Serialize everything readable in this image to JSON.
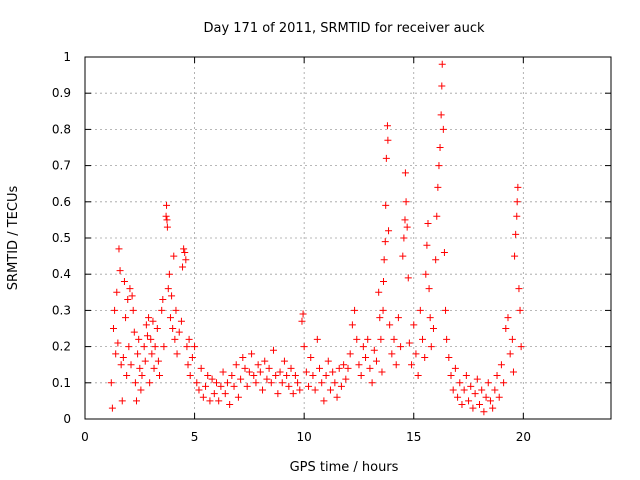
{
  "chart_data": {
    "type": "scatter",
    "title": "Day 171 of 2011, SRMTID for receiver auck",
    "xlabel": "GPS time / hours",
    "ylabel": "SRMTID / TECUs",
    "xlim": [
      0,
      24
    ],
    "ylim": [
      0,
      1
    ],
    "xticks": [
      0,
      5,
      10,
      15,
      20
    ],
    "yticks": [
      0,
      0.1,
      0.2,
      0.3,
      0.4,
      0.5,
      0.6,
      0.7,
      0.8,
      0.9,
      1
    ],
    "grid": true,
    "marker": "+",
    "color": "#ff0000",
    "series": [
      {
        "name": "SRMTID",
        "points": [
          [
            1.2,
            0.1
          ],
          [
            1.25,
            0.03
          ],
          [
            1.3,
            0.25
          ],
          [
            1.35,
            0.3
          ],
          [
            1.4,
            0.18
          ],
          [
            1.45,
            0.35
          ],
          [
            1.5,
            0.21
          ],
          [
            1.55,
            0.47
          ],
          [
            1.6,
            0.41
          ],
          [
            1.65,
            0.15
          ],
          [
            1.7,
            0.05
          ],
          [
            1.75,
            0.17
          ],
          [
            1.8,
            0.38
          ],
          [
            1.85,
            0.28
          ],
          [
            1.9,
            0.12
          ],
          [
            1.95,
            0.33
          ],
          [
            2.0,
            0.2
          ],
          [
            2.05,
            0.36
          ],
          [
            2.1,
            0.15
          ],
          [
            2.15,
            0.34
          ],
          [
            2.2,
            0.3
          ],
          [
            2.25,
            0.24
          ],
          [
            2.3,
            0.1
          ],
          [
            2.35,
            0.05
          ],
          [
            2.4,
            0.18
          ],
          [
            2.45,
            0.22
          ],
          [
            2.5,
            0.14
          ],
          [
            2.55,
            0.08
          ],
          [
            2.6,
            0.12
          ],
          [
            2.7,
            0.2
          ],
          [
            2.75,
            0.16
          ],
          [
            2.8,
            0.26
          ],
          [
            2.85,
            0.23
          ],
          [
            2.9,
            0.28
          ],
          [
            2.95,
            0.1
          ],
          [
            3.0,
            0.22
          ],
          [
            3.05,
            0.18
          ],
          [
            3.1,
            0.27
          ],
          [
            3.15,
            0.14
          ],
          [
            3.2,
            0.2
          ],
          [
            3.3,
            0.25
          ],
          [
            3.35,
            0.16
          ],
          [
            3.4,
            0.12
          ],
          [
            3.5,
            0.3
          ],
          [
            3.55,
            0.33
          ],
          [
            3.6,
            0.2
          ],
          [
            3.7,
            0.56
          ],
          [
            3.72,
            0.59
          ],
          [
            3.74,
            0.55
          ],
          [
            3.76,
            0.53
          ],
          [
            3.8,
            0.36
          ],
          [
            3.85,
            0.4
          ],
          [
            3.9,
            0.28
          ],
          [
            3.95,
            0.34
          ],
          [
            4.0,
            0.25
          ],
          [
            4.05,
            0.45
          ],
          [
            4.1,
            0.22
          ],
          [
            4.15,
            0.3
          ],
          [
            4.2,
            0.18
          ],
          [
            4.3,
            0.24
          ],
          [
            4.4,
            0.27
          ],
          [
            4.45,
            0.42
          ],
          [
            4.5,
            0.47
          ],
          [
            4.55,
            0.46
          ],
          [
            4.6,
            0.44
          ],
          [
            4.65,
            0.2
          ],
          [
            4.7,
            0.15
          ],
          [
            4.75,
            0.22
          ],
          [
            4.8,
            0.12
          ],
          [
            4.9,
            0.17
          ],
          [
            5.0,
            0.2
          ],
          [
            5.1,
            0.1
          ],
          [
            5.2,
            0.08
          ],
          [
            5.3,
            0.14
          ],
          [
            5.4,
            0.06
          ],
          [
            5.5,
            0.09
          ],
          [
            5.6,
            0.12
          ],
          [
            5.7,
            0.05
          ],
          [
            5.8,
            0.11
          ],
          [
            5.9,
            0.07
          ],
          [
            6.0,
            0.1
          ],
          [
            6.1,
            0.05
          ],
          [
            6.2,
            0.09
          ],
          [
            6.3,
            0.13
          ],
          [
            6.4,
            0.07
          ],
          [
            6.5,
            0.1
          ],
          [
            6.6,
            0.04
          ],
          [
            6.7,
            0.12
          ],
          [
            6.8,
            0.09
          ],
          [
            6.9,
            0.15
          ],
          [
            7.0,
            0.06
          ],
          [
            7.1,
            0.11
          ],
          [
            7.2,
            0.17
          ],
          [
            7.3,
            0.14
          ],
          [
            7.4,
            0.09
          ],
          [
            7.5,
            0.13
          ],
          [
            7.6,
            0.18
          ],
          [
            7.7,
            0.12
          ],
          [
            7.8,
            0.1
          ],
          [
            7.9,
            0.15
          ],
          [
            8.0,
            0.13
          ],
          [
            8.1,
            0.08
          ],
          [
            8.2,
            0.16
          ],
          [
            8.3,
            0.11
          ],
          [
            8.4,
            0.14
          ],
          [
            8.5,
            0.1
          ],
          [
            8.6,
            0.19
          ],
          [
            8.7,
            0.12
          ],
          [
            8.8,
            0.07
          ],
          [
            8.9,
            0.13
          ],
          [
            9.0,
            0.1
          ],
          [
            9.1,
            0.16
          ],
          [
            9.2,
            0.12
          ],
          [
            9.3,
            0.09
          ],
          [
            9.4,
            0.14
          ],
          [
            9.5,
            0.07
          ],
          [
            9.6,
            0.12
          ],
          [
            9.7,
            0.1
          ],
          [
            9.8,
            0.08
          ],
          [
            9.9,
            0.27
          ],
          [
            9.95,
            0.29
          ],
          [
            10.0,
            0.2
          ],
          [
            10.1,
            0.13
          ],
          [
            10.2,
            0.09
          ],
          [
            10.3,
            0.17
          ],
          [
            10.4,
            0.12
          ],
          [
            10.5,
            0.08
          ],
          [
            10.6,
            0.22
          ],
          [
            10.7,
            0.14
          ],
          [
            10.8,
            0.1
          ],
          [
            10.9,
            0.05
          ],
          [
            11.0,
            0.12
          ],
          [
            11.1,
            0.16
          ],
          [
            11.2,
            0.08
          ],
          [
            11.3,
            0.13
          ],
          [
            11.4,
            0.1
          ],
          [
            11.5,
            0.06
          ],
          [
            11.6,
            0.14
          ],
          [
            11.7,
            0.09
          ],
          [
            11.8,
            0.15
          ],
          [
            11.9,
            0.11
          ],
          [
            12.0,
            0.14
          ],
          [
            12.1,
            0.18
          ],
          [
            12.2,
            0.26
          ],
          [
            12.3,
            0.3
          ],
          [
            12.4,
            0.22
          ],
          [
            12.5,
            0.15
          ],
          [
            12.6,
            0.12
          ],
          [
            12.7,
            0.2
          ],
          [
            12.8,
            0.17
          ],
          [
            12.9,
            0.22
          ],
          [
            13.0,
            0.14
          ],
          [
            13.1,
            0.1
          ],
          [
            13.2,
            0.19
          ],
          [
            13.3,
            0.16
          ],
          [
            13.4,
            0.35
          ],
          [
            13.45,
            0.28
          ],
          [
            13.5,
            0.22
          ],
          [
            13.55,
            0.13
          ],
          [
            13.6,
            0.3
          ],
          [
            13.62,
            0.38
          ],
          [
            13.65,
            0.44
          ],
          [
            13.7,
            0.49
          ],
          [
            13.72,
            0.59
          ],
          [
            13.75,
            0.72
          ],
          [
            13.8,
            0.81
          ],
          [
            13.82,
            0.77
          ],
          [
            13.85,
            0.52
          ],
          [
            13.9,
            0.26
          ],
          [
            14.0,
            0.18
          ],
          [
            14.1,
            0.22
          ],
          [
            14.2,
            0.15
          ],
          [
            14.3,
            0.28
          ],
          [
            14.4,
            0.2
          ],
          [
            14.5,
            0.45
          ],
          [
            14.55,
            0.5
          ],
          [
            14.6,
            0.55
          ],
          [
            14.62,
            0.68
          ],
          [
            14.65,
            0.6
          ],
          [
            14.7,
            0.53
          ],
          [
            14.75,
            0.39
          ],
          [
            14.8,
            0.21
          ],
          [
            14.9,
            0.15
          ],
          [
            15.0,
            0.26
          ],
          [
            15.1,
            0.18
          ],
          [
            15.2,
            0.12
          ],
          [
            15.3,
            0.3
          ],
          [
            15.4,
            0.22
          ],
          [
            15.5,
            0.17
          ],
          [
            15.55,
            0.4
          ],
          [
            15.6,
            0.48
          ],
          [
            15.65,
            0.54
          ],
          [
            15.7,
            0.36
          ],
          [
            15.75,
            0.28
          ],
          [
            15.8,
            0.2
          ],
          [
            15.9,
            0.25
          ],
          [
            16.0,
            0.44
          ],
          [
            16.05,
            0.56
          ],
          [
            16.1,
            0.64
          ],
          [
            16.15,
            0.7
          ],
          [
            16.2,
            0.75
          ],
          [
            16.25,
            0.84
          ],
          [
            16.28,
            0.92
          ],
          [
            16.3,
            0.98
          ],
          [
            16.35,
            0.8
          ],
          [
            16.4,
            0.46
          ],
          [
            16.45,
            0.3
          ],
          [
            16.5,
            0.22
          ],
          [
            16.6,
            0.17
          ],
          [
            16.7,
            0.12
          ],
          [
            16.8,
            0.08
          ],
          [
            16.9,
            0.14
          ],
          [
            17.0,
            0.06
          ],
          [
            17.1,
            0.1
          ],
          [
            17.2,
            0.04
          ],
          [
            17.3,
            0.08
          ],
          [
            17.4,
            0.12
          ],
          [
            17.5,
            0.05
          ],
          [
            17.6,
            0.09
          ],
          [
            17.7,
            0.03
          ],
          [
            17.8,
            0.07
          ],
          [
            17.9,
            0.11
          ],
          [
            18.0,
            0.04
          ],
          [
            18.1,
            0.08
          ],
          [
            18.2,
            0.02
          ],
          [
            18.3,
            0.06
          ],
          [
            18.4,
            0.1
          ],
          [
            18.5,
            0.05
          ],
          [
            18.6,
            0.03
          ],
          [
            18.7,
            0.08
          ],
          [
            18.8,
            0.12
          ],
          [
            18.9,
            0.06
          ],
          [
            19.0,
            0.15
          ],
          [
            19.1,
            0.1
          ],
          [
            19.2,
            0.25
          ],
          [
            19.3,
            0.28
          ],
          [
            19.4,
            0.18
          ],
          [
            19.5,
            0.22
          ],
          [
            19.55,
            0.13
          ],
          [
            19.6,
            0.45
          ],
          [
            19.65,
            0.51
          ],
          [
            19.7,
            0.56
          ],
          [
            19.72,
            0.6
          ],
          [
            19.75,
            0.64
          ],
          [
            19.8,
            0.36
          ],
          [
            19.85,
            0.3
          ],
          [
            19.9,
            0.2
          ]
        ]
      }
    ]
  }
}
